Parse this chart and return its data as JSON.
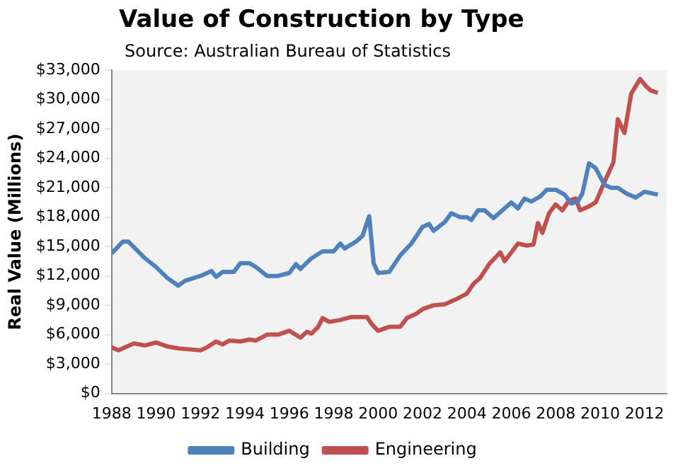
{
  "chart_data": {
    "type": "line",
    "title": "Value of Construction by Type",
    "subtitle": "Source: Australian Bureau of Statistics",
    "ylabel": "Real Value (Millions)",
    "xlim": [
      1988,
      2013
    ],
    "xticks": [
      1988,
      1990,
      1992,
      1994,
      1996,
      1998,
      2000,
      2002,
      2004,
      2006,
      2008,
      2010,
      2012
    ],
    "ylim": [
      0,
      33000
    ],
    "yticks": [
      {
        "value": 0,
        "label": "$0"
      },
      {
        "value": 3000,
        "label": "$3,000"
      },
      {
        "value": 6000,
        "label": "$6,000"
      },
      {
        "value": 9000,
        "label": "$9,000"
      },
      {
        "value": 12000,
        "label": "$12,000"
      },
      {
        "value": 15000,
        "label": "$15,000"
      },
      {
        "value": 18000,
        "label": "$18,000"
      },
      {
        "value": 21000,
        "label": "$21,000"
      },
      {
        "value": 24000,
        "label": "$24,000"
      },
      {
        "value": 27000,
        "label": "$27,000"
      },
      {
        "value": 30000,
        "label": "$30,000"
      },
      {
        "value": 33000,
        "label": "$33,000"
      }
    ],
    "grid": false,
    "legend": "bottom",
    "marker": "none",
    "line_style": "solid",
    "series": [
      {
        "name": "Building",
        "color": "#4f81bd",
        "x": [
          1988,
          1988.5,
          1988.75,
          1989.5,
          1990,
          1990.5,
          1991,
          1991.3,
          1992,
          1992.5,
          1992.7,
          1993,
          1993.5,
          1993.8,
          1994.2,
          1994.5,
          1995,
          1995.5,
          1996,
          1996.3,
          1996.5,
          1997,
          1997.5,
          1998,
          1998.3,
          1998.5,
          1999,
          1999.3,
          1999.6,
          1999.8,
          2000,
          2000.5,
          2001,
          2001.5,
          2002,
          2002.3,
          2002.5,
          2003,
          2003.3,
          2003.7,
          2004,
          2004.2,
          2004.5,
          2004.8,
          2005.2,
          2005.5,
          2006,
          2006.3,
          2006.6,
          2006.9,
          2007.3,
          2007.6,
          2008,
          2008.4,
          2008.7,
          2009,
          2009.2,
          2009.5,
          2009.8,
          2010.2,
          2010.5,
          2010.8,
          2011.2,
          2011.6,
          2012,
          2012.6
        ],
        "values": [
          14300,
          15500,
          15500,
          13800,
          12900,
          11800,
          11000,
          11500,
          12000,
          12500,
          11900,
          12400,
          12400,
          13300,
          13300,
          12900,
          12000,
          12000,
          12300,
          13200,
          12700,
          13800,
          14500,
          14500,
          15300,
          14800,
          15500,
          16100,
          18100,
          13300,
          12300,
          12400,
          14100,
          15300,
          17000,
          17300,
          16600,
          17500,
          18400,
          18000,
          18000,
          17700,
          18700,
          18700,
          17900,
          18500,
          19500,
          18900,
          19900,
          19600,
          20100,
          20800,
          20800,
          20300,
          19400,
          19600,
          20400,
          23500,
          23000,
          21300,
          21000,
          21000,
          20400,
          20000,
          20600,
          20300
        ]
      },
      {
        "name": "Engineering",
        "color": "#c0504d",
        "x": [
          1988,
          1988.3,
          1988.5,
          1989,
          1989.5,
          1990,
          1990.5,
          1991,
          1991.5,
          1992,
          1992.3,
          1992.7,
          1993,
          1993.3,
          1993.8,
          1994.2,
          1994.5,
          1995,
          1995.5,
          1996,
          1996.5,
          1996.8,
          1997,
          1997.3,
          1997.5,
          1997.8,
          1998.3,
          1998.8,
          1999.5,
          1999.7,
          2000,
          2000.5,
          2001,
          2001.3,
          2001.7,
          2002,
          2002.5,
          2003,
          2003.5,
          2004,
          2004.3,
          2004.6,
          2005,
          2005.5,
          2005.7,
          2006,
          2006.3,
          2006.7,
          2007,
          2007.2,
          2007.4,
          2007.7,
          2008,
          2008.3,
          2008.6,
          2008.9,
          2009.1,
          2009.5,
          2009.8,
          2010.2,
          2010.6,
          2010.8,
          2011.1,
          2011.4,
          2011.8,
          2012.1,
          2012.3,
          2012.6
        ],
        "values": [
          4700,
          4400,
          4600,
          5100,
          4900,
          5200,
          4800,
          4600,
          4500,
          4400,
          4700,
          5300,
          5000,
          5400,
          5300,
          5500,
          5400,
          6000,
          6000,
          6400,
          5700,
          6300,
          6100,
          6800,
          7700,
          7300,
          7500,
          7800,
          7800,
          7100,
          6400,
          6800,
          6800,
          7700,
          8100,
          8600,
          9000,
          9100,
          9600,
          10200,
          11200,
          11800,
          13200,
          14400,
          13500,
          14400,
          15300,
          15100,
          15200,
          17400,
          16400,
          18400,
          19300,
          18700,
          19700,
          19900,
          18700,
          19100,
          19500,
          21600,
          23600,
          28000,
          26600,
          30600,
          32100,
          31300,
          30900,
          30700
        ]
      }
    ]
  }
}
